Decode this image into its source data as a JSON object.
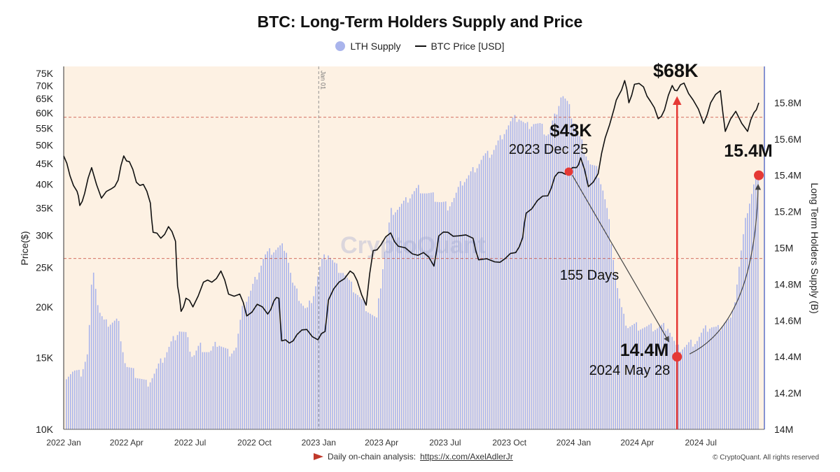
{
  "footer": {
    "left_prefix": "Daily on-chain analysis:",
    "left_link": "https://x.com/AxelAdlerJr",
    "right": "© CryptoQuant. All rights reserved"
  },
  "colors": {
    "plot_background": "#fdf1e3",
    "supply_bars": "#a9b4ec",
    "price_line": "#111111",
    "right_axis": "#5468c4",
    "annotation_red": "#e53935",
    "reference_line": "#c0392b"
  },
  "annotations": {
    "price_68k": "$68K",
    "price_43k": "$43K",
    "date_43k": "2023 Dec 25",
    "supply_154": "15.4M",
    "supply_144": "14.4M",
    "date_144": "2024 May 28",
    "days": "155 Days",
    "jan01": "Jan 01",
    "watermark": "CryptoQuant"
  },
  "chart_data": {
    "type": "bar+line",
    "title": "BTC: Long-Term Holders Supply and Price",
    "legend": [
      "LTH Supply",
      "BTC Price [USD]"
    ],
    "legend_position": "top-center",
    "grid": false,
    "y_left_label": "Price($)",
    "y_left_scale": "log",
    "y_left_range": [
      10000,
      78000
    ],
    "y_left_ticks": [
      "75K",
      "70K",
      "65K",
      "60K",
      "55K",
      "50K",
      "45K",
      "40K",
      "35K",
      "30K",
      "25K",
      "20K",
      "15K",
      "10K"
    ],
    "y_left_tick_values": [
      75000,
      70000,
      65000,
      60000,
      55000,
      50000,
      45000,
      40000,
      35000,
      30000,
      25000,
      20000,
      15000,
      10000
    ],
    "y_right_label": "Long Term Holders Supply (B)",
    "y_right_range": [
      14.0,
      16.0
    ],
    "y_right_ticks": [
      "15.8M",
      "15.6M",
      "15.4M",
      "15.2M",
      "15M",
      "14.8M",
      "14.6M",
      "14.4M",
      "14.2M",
      "14M"
    ],
    "y_right_tick_values": [
      15.8,
      15.6,
      15.4,
      15.2,
      15.0,
      14.8,
      14.6,
      14.4,
      14.2,
      14.0
    ],
    "x_labels": [
      "2022 Jan",
      "2022 Apr",
      "2022 Jul",
      "2022 Oct",
      "2023 Jan",
      "2023 Apr",
      "2023 Jul",
      "2023 Oct",
      "2024 Jan",
      "2024 Apr",
      "2024 Jul"
    ],
    "x_range": [
      "2022-01-01",
      "2024-09-30"
    ],
    "x_tick_dates": [
      "2022-01-01",
      "2022-04-01",
      "2022-07-01",
      "2022-10-01",
      "2023-01-01",
      "2023-04-01",
      "2023-07-01",
      "2023-10-01",
      "2024-01-01",
      "2024-04-01",
      "2024-07-01"
    ],
    "reference_lines_price": [
      58500,
      26300
    ],
    "vertical_marker_date": "2023-01-01",
    "highlight_points": [
      {
        "date": "2023-12-25",
        "price": 43000
      },
      {
        "date": "2024-05-28",
        "supply": 14.4
      },
      {
        "date": "2024-09-22",
        "supply": 15.4
      }
    ],
    "series": [
      {
        "name": "LTH Supply",
        "kind": "bar",
        "unit": "M BTC",
        "points": [
          [
            "2022-01-05",
            14.3
          ],
          [
            "2022-01-15",
            14.32
          ],
          [
            "2022-01-25",
            14.3
          ],
          [
            "2022-02-05",
            14.42
          ],
          [
            "2022-02-12",
            14.92
          ],
          [
            "2022-02-20",
            14.66
          ],
          [
            "2022-03-01",
            14.58
          ],
          [
            "2022-03-10",
            14.59
          ],
          [
            "2022-03-20",
            14.6
          ],
          [
            "2022-03-31",
            14.35
          ],
          [
            "2022-04-15",
            14.3
          ],
          [
            "2022-04-30",
            14.25
          ],
          [
            "2022-05-10",
            14.3
          ],
          [
            "2022-05-25",
            14.4
          ],
          [
            "2022-06-05",
            14.48
          ],
          [
            "2022-06-15",
            14.55
          ],
          [
            "2022-06-25",
            14.52
          ],
          [
            "2022-07-05",
            14.4
          ],
          [
            "2022-07-15",
            14.46
          ],
          [
            "2022-07-30",
            14.42
          ],
          [
            "2022-08-10",
            14.48
          ],
          [
            "2022-08-25",
            14.42
          ],
          [
            "2022-09-05",
            14.45
          ],
          [
            "2022-09-15",
            14.68
          ],
          [
            "2022-09-25",
            14.75
          ],
          [
            "2022-10-05",
            14.85
          ],
          [
            "2022-10-15",
            14.95
          ],
          [
            "2022-10-25",
            14.98
          ],
          [
            "2022-11-05",
            15.0
          ],
          [
            "2022-11-15",
            15.01
          ],
          [
            "2022-11-25",
            14.8
          ],
          [
            "2022-12-05",
            14.72
          ],
          [
            "2022-12-15",
            14.65
          ],
          [
            "2022-12-25",
            14.75
          ],
          [
            "2023-01-05",
            14.92
          ],
          [
            "2023-01-15",
            14.97
          ],
          [
            "2023-01-25",
            14.9
          ],
          [
            "2023-02-05",
            14.87
          ],
          [
            "2023-02-15",
            14.8
          ],
          [
            "2023-02-25",
            14.75
          ],
          [
            "2023-03-05",
            14.7
          ],
          [
            "2023-03-15",
            14.65
          ],
          [
            "2023-03-25",
            14.6
          ],
          [
            "2023-04-05",
            14.96
          ],
          [
            "2023-04-15",
            15.2
          ],
          [
            "2023-04-25",
            15.22
          ],
          [
            "2023-05-05",
            15.25
          ],
          [
            "2023-05-15",
            15.3
          ],
          [
            "2023-05-25",
            15.33
          ],
          [
            "2023-06-05",
            15.3
          ],
          [
            "2023-06-15",
            15.28
          ],
          [
            "2023-06-25",
            15.25
          ],
          [
            "2023-07-05",
            15.23
          ],
          [
            "2023-07-15",
            15.28
          ],
          [
            "2023-07-25",
            15.36
          ],
          [
            "2023-08-05",
            15.4
          ],
          [
            "2023-08-15",
            15.45
          ],
          [
            "2023-08-25",
            15.5
          ],
          [
            "2023-09-05",
            15.52
          ],
          [
            "2023-09-15",
            15.58
          ],
          [
            "2023-09-25",
            15.65
          ],
          [
            "2023-10-05",
            15.7
          ],
          [
            "2023-10-15",
            15.72
          ],
          [
            "2023-10-25",
            15.67
          ],
          [
            "2023-11-05",
            15.69
          ],
          [
            "2023-11-15",
            15.67
          ],
          [
            "2023-11-25",
            15.62
          ],
          [
            "2023-12-05",
            15.72
          ],
          [
            "2023-12-15",
            15.85
          ],
          [
            "2023-12-25",
            15.78
          ],
          [
            "2024-01-05",
            15.65
          ],
          [
            "2024-01-15",
            15.56
          ],
          [
            "2024-01-25",
            15.46
          ],
          [
            "2024-02-05",
            15.42
          ],
          [
            "2024-02-12",
            15.32
          ],
          [
            "2024-02-20",
            15.17
          ],
          [
            "2024-02-27",
            14.95
          ],
          [
            "2024-03-05",
            14.75
          ],
          [
            "2024-03-12",
            14.62
          ],
          [
            "2024-03-19",
            14.57
          ],
          [
            "2024-03-31",
            14.57
          ],
          [
            "2024-04-15",
            14.56
          ],
          [
            "2024-04-30",
            14.56
          ],
          [
            "2024-05-15",
            14.57
          ],
          [
            "2024-05-28",
            14.44
          ],
          [
            "2024-06-10",
            14.46
          ],
          [
            "2024-06-25",
            14.49
          ],
          [
            "2024-07-05",
            14.54
          ],
          [
            "2024-07-15",
            14.57
          ],
          [
            "2024-07-25",
            14.55
          ],
          [
            "2024-08-05",
            14.6
          ],
          [
            "2024-08-15",
            14.6
          ],
          [
            "2024-08-25",
            14.9
          ],
          [
            "2024-09-05",
            15.2
          ],
          [
            "2024-09-15",
            15.35
          ],
          [
            "2024-09-22",
            15.4
          ]
        ]
      },
      {
        "name": "BTC Price [USD]",
        "kind": "line",
        "unit": "USD",
        "points": [
          [
            "2022-01-01",
            47000
          ],
          [
            "2022-01-10",
            42000
          ],
          [
            "2022-01-20",
            38500
          ],
          [
            "2022-01-24",
            35500
          ],
          [
            "2022-01-31",
            38000
          ],
          [
            "2022-02-10",
            44000
          ],
          [
            "2022-02-24",
            37000
          ],
          [
            "2022-03-10",
            39000
          ],
          [
            "2022-03-20",
            41000
          ],
          [
            "2022-03-28",
            47000
          ],
          [
            "2022-04-05",
            45500
          ],
          [
            "2022-04-15",
            40500
          ],
          [
            "2022-04-25",
            40000
          ],
          [
            "2022-05-05",
            36000
          ],
          [
            "2022-05-09",
            30500
          ],
          [
            "2022-05-20",
            29500
          ],
          [
            "2022-05-31",
            31500
          ],
          [
            "2022-06-10",
            29000
          ],
          [
            "2022-06-13",
            22500
          ],
          [
            "2022-06-18",
            19500
          ],
          [
            "2022-06-25",
            21000
          ],
          [
            "2022-07-05",
            20000
          ],
          [
            "2022-07-20",
            23000
          ],
          [
            "2022-08-01",
            23000
          ],
          [
            "2022-08-14",
            24500
          ],
          [
            "2022-08-25",
            21500
          ],
          [
            "2022-09-10",
            21500
          ],
          [
            "2022-09-20",
            19000
          ],
          [
            "2022-10-05",
            20300
          ],
          [
            "2022-10-20",
            19200
          ],
          [
            "2022-10-29",
            20700
          ],
          [
            "2022-11-05",
            21000
          ],
          [
            "2022-11-09",
            16500
          ],
          [
            "2022-11-20",
            16300
          ],
          [
            "2022-12-01",
            17100
          ],
          [
            "2022-12-15",
            17600
          ],
          [
            "2022-12-31",
            16600
          ],
          [
            "2023-01-10",
            17400
          ],
          [
            "2023-01-15",
            20800
          ],
          [
            "2023-01-30",
            23000
          ],
          [
            "2023-02-15",
            24500
          ],
          [
            "2023-02-25",
            23200
          ],
          [
            "2023-03-10",
            20200
          ],
          [
            "2023-03-20",
            27500
          ],
          [
            "2023-03-31",
            28400
          ],
          [
            "2023-04-14",
            30400
          ],
          [
            "2023-04-25",
            28200
          ],
          [
            "2023-05-15",
            27000
          ],
          [
            "2023-05-31",
            27200
          ],
          [
            "2023-06-15",
            25200
          ],
          [
            "2023-06-22",
            29900
          ],
          [
            "2023-07-05",
            30500
          ],
          [
            "2023-07-20",
            29900
          ],
          [
            "2023-08-10",
            29500
          ],
          [
            "2023-08-18",
            26100
          ],
          [
            "2023-09-10",
            25800
          ],
          [
            "2023-09-25",
            26300
          ],
          [
            "2023-10-10",
            27200
          ],
          [
            "2023-10-20",
            29600
          ],
          [
            "2023-10-25",
            34000
          ],
          [
            "2023-11-10",
            36500
          ],
          [
            "2023-11-25",
            37500
          ],
          [
            "2023-12-05",
            41800
          ],
          [
            "2023-12-15",
            42800
          ],
          [
            "2023-12-25",
            43000
          ],
          [
            "2024-01-05",
            44000
          ],
          [
            "2024-01-11",
            46500
          ],
          [
            "2024-01-22",
            39500
          ],
          [
            "2024-02-05",
            42500
          ],
          [
            "2024-02-15",
            52000
          ],
          [
            "2024-02-28",
            61500
          ],
          [
            "2024-03-05",
            66000
          ],
          [
            "2024-03-14",
            72000
          ],
          [
            "2024-03-20",
            63500
          ],
          [
            "2024-03-28",
            70500
          ],
          [
            "2024-04-10",
            69500
          ],
          [
            "2024-04-20",
            64000
          ],
          [
            "2024-05-01",
            58000
          ],
          [
            "2024-05-10",
            61000
          ],
          [
            "2024-05-21",
            70000
          ],
          [
            "2024-05-28",
            68000
          ],
          [
            "2024-06-07",
            71000
          ],
          [
            "2024-06-20",
            64500
          ],
          [
            "2024-07-05",
            56500
          ],
          [
            "2024-07-15",
            63500
          ],
          [
            "2024-07-29",
            68000
          ],
          [
            "2024-08-05",
            54000
          ],
          [
            "2024-08-20",
            60500
          ],
          [
            "2024-09-06",
            54000
          ],
          [
            "2024-09-15",
            60000
          ],
          [
            "2024-09-22",
            63500
          ]
        ]
      }
    ]
  }
}
